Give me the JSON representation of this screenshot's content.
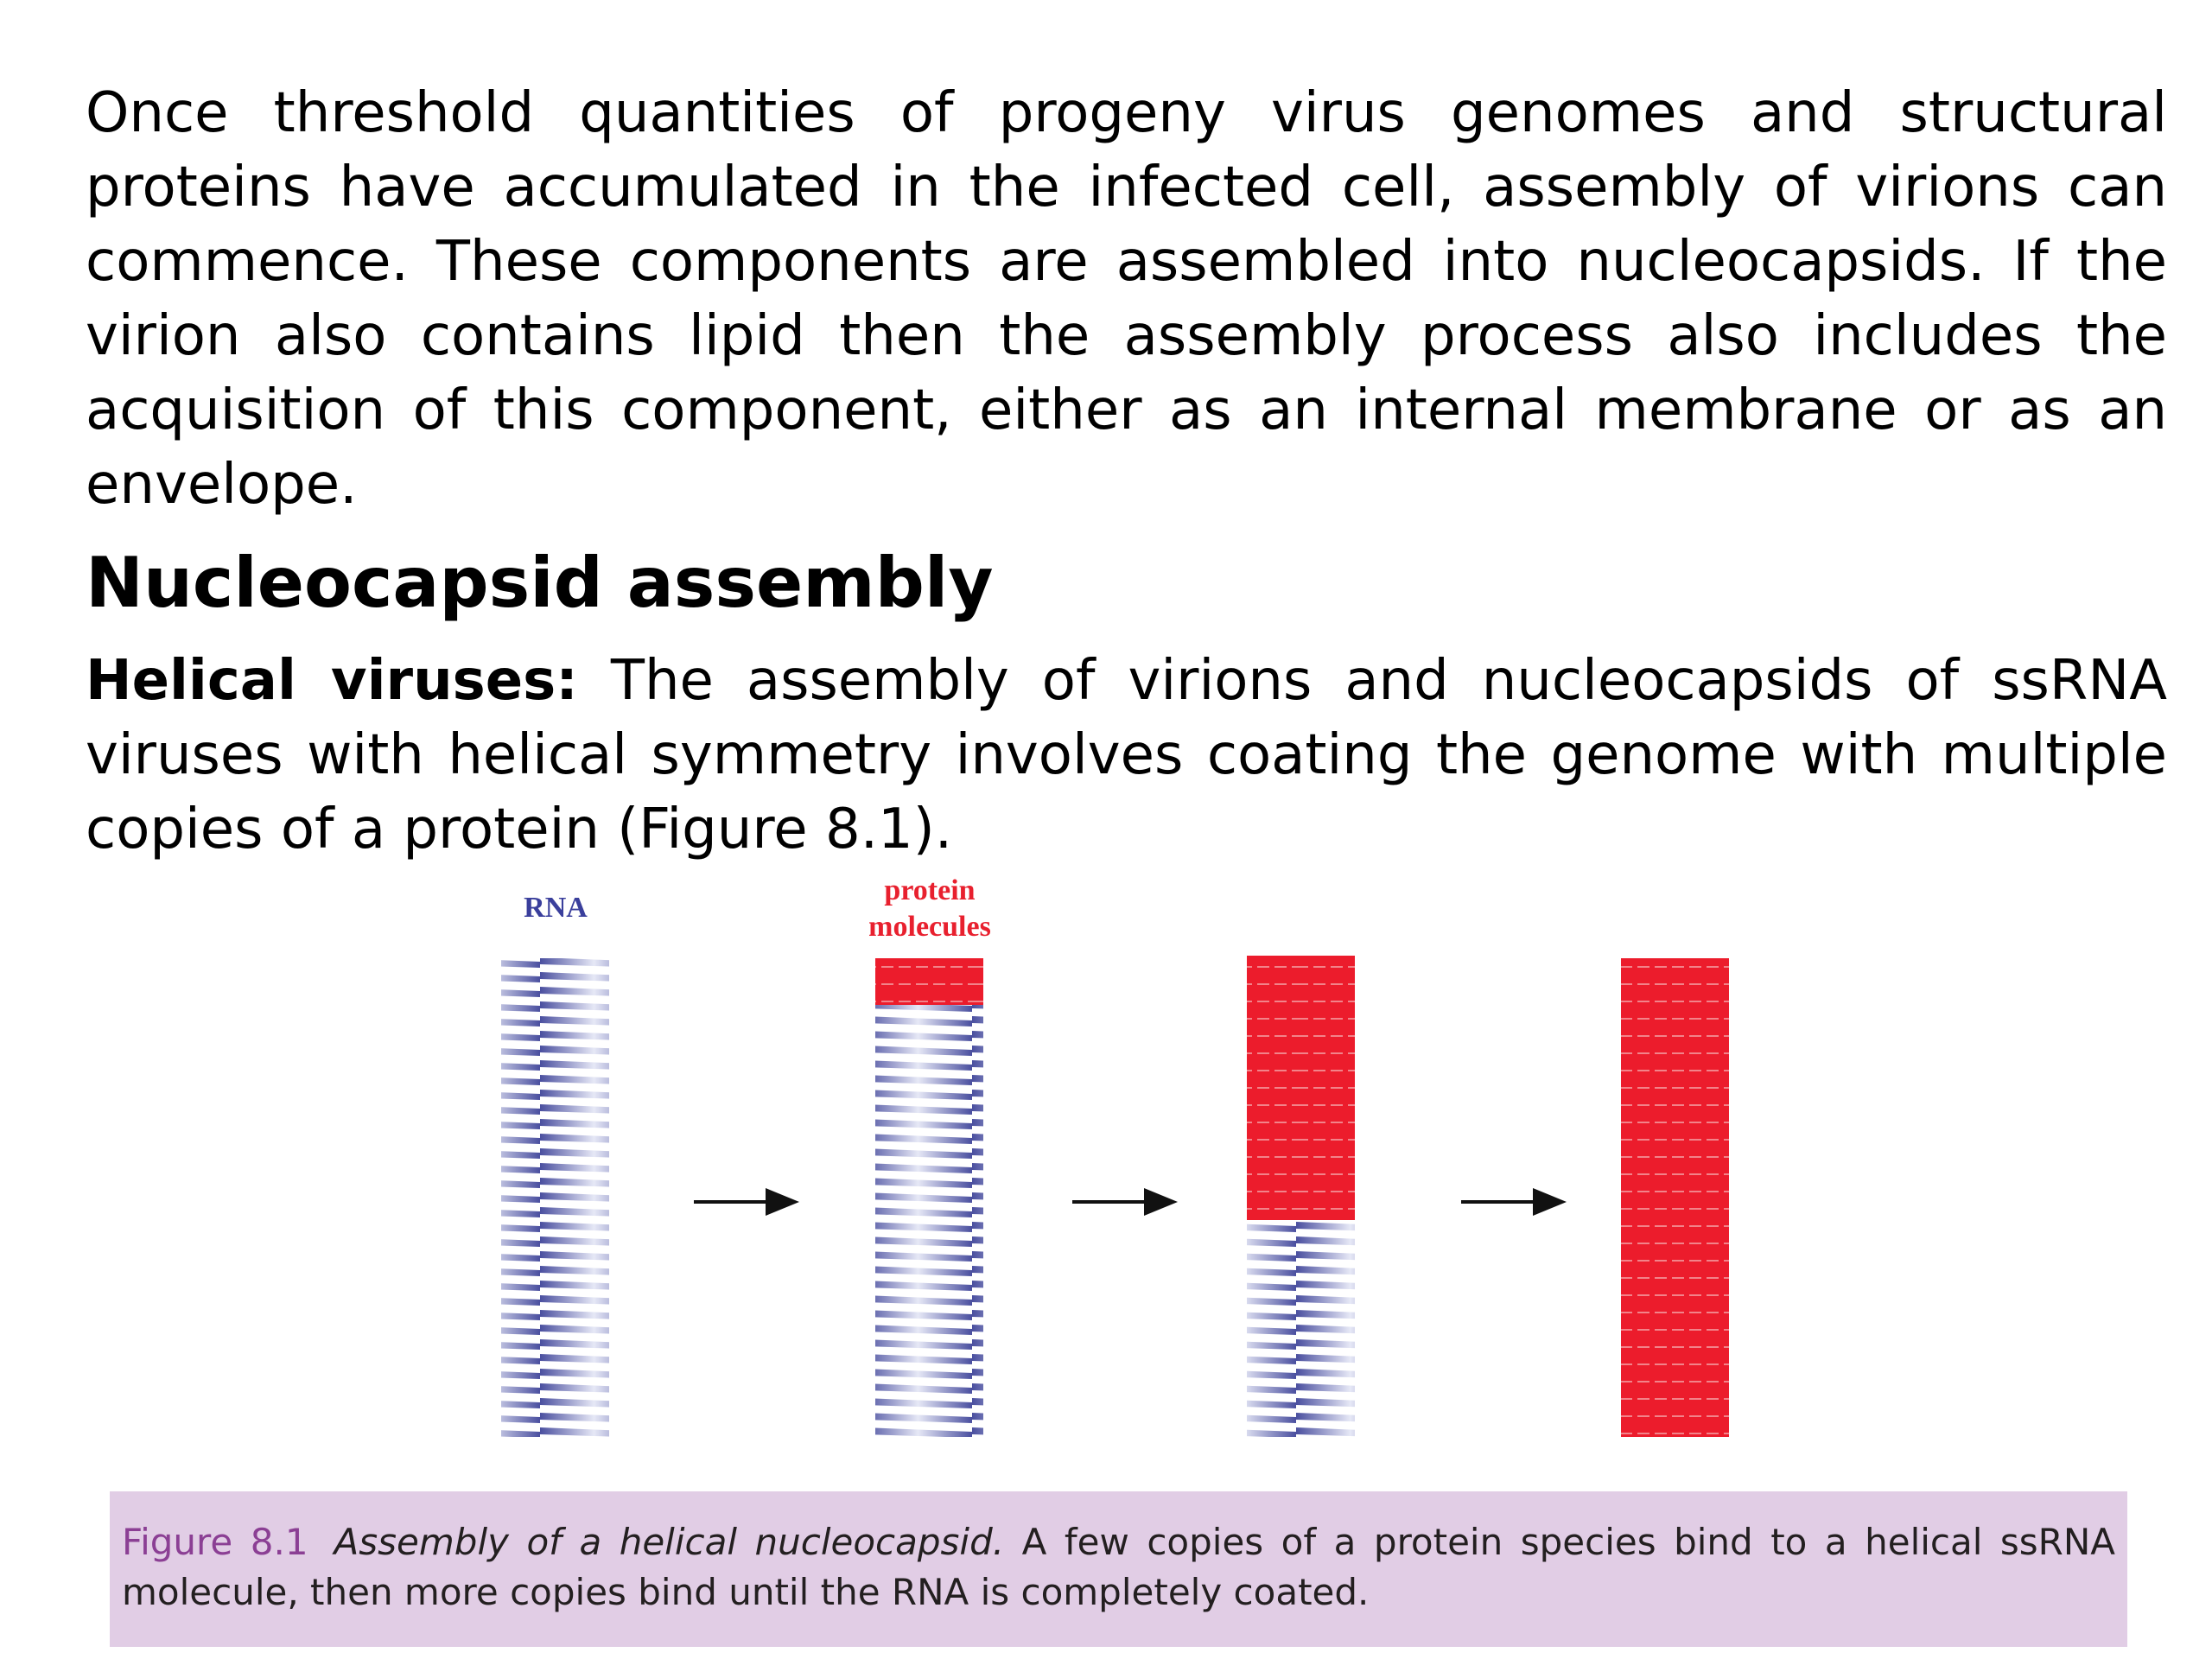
{
  "paragraph1": "Once threshold quantities of progeny virus genomes and structural proteins have accumulated in the infected cell, assembly of virions can commence. These components are assembled into nucleocapsids. If the virion also contains lipid then the assembly process also includes the acquisition of this component, either as an internal membrane or as an envelope.",
  "heading": "Nucleocapsid assembly",
  "paragraph2": {
    "lead": "Helical viruses:",
    "text": "The assembly of virions and nucleocapsids of ssRNA viruses with helical symmetry involves coating the genome with multiple copies of a protein (Figure 8.1)."
  },
  "figure": {
    "labels": {
      "rna": "RNA",
      "protein": "protein molecules"
    },
    "caption": {
      "number": "Figure 8.1",
      "title": "Assembly of a helical nucleocapsid.",
      "text": "A few copies of a protein species bind to a helical ssRNA molecule, then more copies bind until the RNA is completely coated."
    }
  }
}
